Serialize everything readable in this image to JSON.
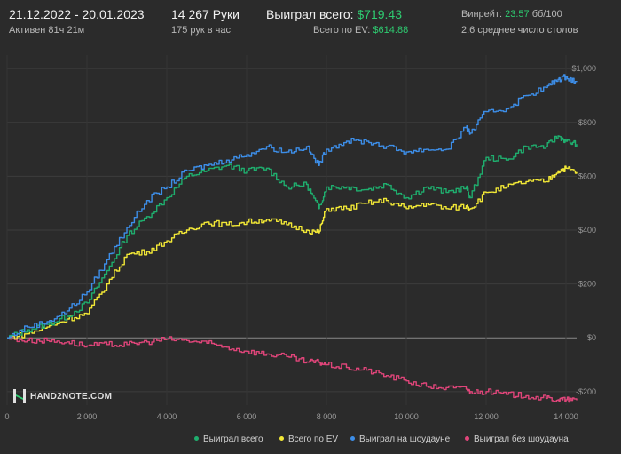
{
  "header": {
    "date_range": "21.12.2022 - 20.01.2023",
    "active_time": "Активен 81ч 21м",
    "hands": "14 267 Руки",
    "hands_per_hour": "175 рук в час",
    "won_total_label": "Выиграл всего:",
    "won_total_value": "$719.43",
    "ev_total_label": "Всего по EV:",
    "ev_total_value": "$614.88",
    "winrate_label": "Винрейт:",
    "winrate_value": "23.57",
    "winrate_unit": "бб/100",
    "tables_avg": "2.6 среднее число столов"
  },
  "logo": {
    "text": "HAND2NOTE.COM"
  },
  "colors": {
    "background": "#2b2b2b",
    "won_total": "#1fae6e",
    "ev": "#f2e836",
    "showdown": "#3d8ee8",
    "non_showdown": "#e0457a",
    "accent_green": "#2ecc71"
  },
  "chart_data": {
    "type": "line",
    "xlabel": "",
    "ylabel": "",
    "xlim": [
      0,
      14267
    ],
    "ylim": [
      -250,
      1050
    ],
    "x_ticks": [
      0,
      2000,
      4000,
      6000,
      8000,
      10000,
      12000,
      14000
    ],
    "x_tick_labels": [
      "0",
      "2 000",
      "4 000",
      "6 000",
      "8 000",
      "10 000",
      "12 000",
      "14 000"
    ],
    "y_ticks": [
      -200,
      0,
      200,
      400,
      600,
      800,
      1000
    ],
    "y_tick_labels": [
      "-$200",
      "$0",
      "$200",
      "$400",
      "$600",
      "$800",
      "$1,000"
    ],
    "grid": true,
    "legend_position": "bottom-right",
    "x": [
      0,
      500,
      1000,
      1500,
      2000,
      2500,
      3000,
      3500,
      4000,
      4500,
      5000,
      5500,
      6000,
      6500,
      7000,
      7500,
      7800,
      8000,
      8500,
      9000,
      9500,
      10000,
      10500,
      11000,
      11500,
      11600,
      12000,
      12500,
      13000,
      13500,
      13800,
      14000,
      14267
    ],
    "series": [
      {
        "name": "Выиграл всего",
        "color_key": "won_total",
        "values": [
          0,
          30,
          50,
          80,
          130,
          250,
          380,
          450,
          520,
          600,
          620,
          640,
          620,
          630,
          560,
          570,
          480,
          560,
          560,
          550,
          570,
          520,
          560,
          540,
          560,
          520,
          670,
          660,
          710,
          710,
          750,
          730,
          719
        ]
      },
      {
        "name": "Всего по EV",
        "color_key": "ev",
        "values": [
          0,
          15,
          40,
          70,
          90,
          200,
          310,
          320,
          360,
          400,
          430,
          420,
          430,
          440,
          420,
          400,
          390,
          480,
          480,
          500,
          510,
          480,
          500,
          480,
          490,
          480,
          540,
          560,
          580,
          580,
          620,
          630,
          615
        ]
      },
      {
        "name": "Выиграл на шоудауне",
        "color_key": "showdown",
        "values": [
          0,
          40,
          60,
          100,
          170,
          290,
          410,
          510,
          560,
          620,
          640,
          660,
          680,
          710,
          690,
          710,
          640,
          700,
          730,
          730,
          710,
          690,
          700,
          700,
          780,
          760,
          840,
          850,
          900,
          930,
          960,
          970,
          950
        ]
      },
      {
        "name": "Выиграл без шоудауна",
        "color_key": "non_showdown",
        "values": [
          0,
          -10,
          -10,
          -15,
          -30,
          -25,
          -25,
          -15,
          -5,
          -10,
          -20,
          -35,
          -50,
          -60,
          -70,
          -90,
          -90,
          -100,
          -110,
          -120,
          -140,
          -160,
          -180,
          -185,
          -190,
          -200,
          -200,
          -210,
          -215,
          -225,
          -230,
          -230,
          -232
        ]
      }
    ]
  }
}
